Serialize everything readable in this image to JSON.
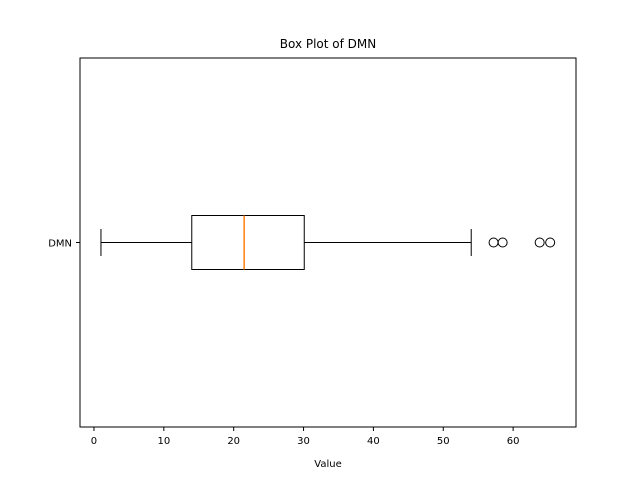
{
  "chart_data": {
    "type": "box",
    "title": "Box Plot of DMN",
    "xlabel": "Value",
    "ylabel": "",
    "orientation": "horizontal",
    "xlim": [
      -2,
      69
    ],
    "xticks": [
      0,
      10,
      20,
      30,
      40,
      50,
      60
    ],
    "grid": false,
    "series": [
      {
        "name": "DMN",
        "whisker_low": 1,
        "q1": 14,
        "median": 21.5,
        "q3": 30.1,
        "whisker_high": 54,
        "outliers": [
          57.2,
          58.5,
          63.8,
          65.3
        ]
      }
    ],
    "colors": {
      "box": "#000000",
      "median": "#ff7f0e",
      "outlier": "#000000"
    }
  }
}
